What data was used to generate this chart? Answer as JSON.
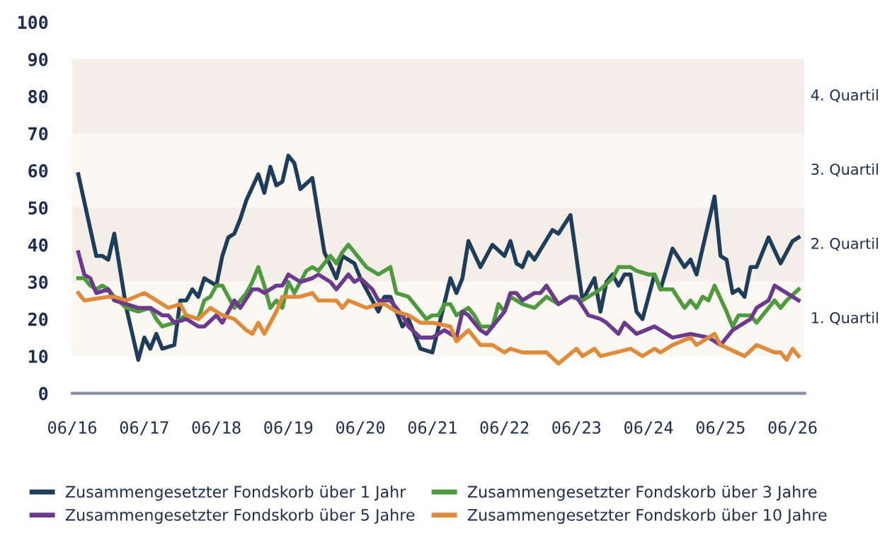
{
  "chart_data": {
    "type": "line",
    "xlim": [
      "2016-06",
      "2026-08"
    ],
    "ylim": [
      0,
      100
    ],
    "xticks": [
      {
        "value": "2016-06",
        "label": "06/16"
      },
      {
        "value": "2017-06",
        "label": "06/17"
      },
      {
        "value": "2018-06",
        "label": "06/18"
      },
      {
        "value": "2019-06",
        "label": "06/19"
      },
      {
        "value": "2020-06",
        "label": "06/20"
      },
      {
        "value": "2021-06",
        "label": "06/21"
      },
      {
        "value": "2022-06",
        "label": "06/22"
      },
      {
        "value": "2023-06",
        "label": "06/23"
      },
      {
        "value": "2024-06",
        "label": "06/24"
      },
      {
        "value": "2025-06",
        "label": "06/25"
      },
      {
        "value": "2026-06",
        "label": "06/26"
      }
    ],
    "yticks": [
      0,
      10,
      20,
      30,
      40,
      50,
      60,
      70,
      80,
      90,
      100
    ],
    "grid": false,
    "legend": "bottom",
    "marker": "none",
    "line_style": "solid",
    "bands": [
      {
        "axis": "y",
        "from": 10,
        "to": 30,
        "label": "1. Quartil",
        "color": "#fbf8f3"
      },
      {
        "axis": "y",
        "from": 30,
        "to": 50,
        "label": "2. Quartil",
        "color": "#f3eee8"
      },
      {
        "axis": "y",
        "from": 50,
        "to": 70,
        "label": "3. Quartil",
        "color": "#fbf8f3"
      },
      {
        "axis": "y",
        "from": 70,
        "to": 90,
        "label": "4. Quartil",
        "color": "#f3eee8"
      }
    ],
    "series": [
      {
        "name": "Zusammengesetzter Fondskorb über 1 Jahr",
        "color": "#1f3d5a",
        "x": [
          "2016-07",
          "2016-10",
          "2016-11",
          "2016-12",
          "2017-01",
          "2017-02",
          "2017-03",
          "2017-05",
          "2017-06",
          "2017-07",
          "2017-08",
          "2017-09",
          "2017-11",
          "2017-12",
          "2018-01",
          "2018-02",
          "2018-03",
          "2018-04",
          "2018-06",
          "2018-07",
          "2018-08",
          "2018-09",
          "2018-10",
          "2018-11",
          "2019-01",
          "2019-02",
          "2019-03",
          "2019-04",
          "2019-05",
          "2019-06",
          "2019-07",
          "2019-08",
          "2019-10",
          "2019-12",
          "2020-02",
          "2020-03",
          "2020-05",
          "2020-06",
          "2020-07",
          "2020-09",
          "2020-10",
          "2020-11",
          "2021-01",
          "2021-02",
          "2021-04",
          "2021-06",
          "2021-09",
          "2021-10",
          "2021-11",
          "2021-12",
          "2022-02",
          "2022-04",
          "2022-06",
          "2022-07",
          "2022-08",
          "2022-09",
          "2022-10",
          "2022-11",
          "2023-02",
          "2023-03",
          "2023-05",
          "2023-07",
          "2023-09",
          "2023-10",
          "2023-11",
          "2023-12",
          "2024-01",
          "2024-02",
          "2024-03",
          "2024-04",
          "2024-05",
          "2024-07",
          "2024-08",
          "2024-10",
          "2024-12",
          "2025-01",
          "2025-02",
          "2025-05",
          "2025-06",
          "2025-07",
          "2025-08",
          "2025-09",
          "2025-10",
          "2025-11",
          "2025-12",
          "2026-02",
          "2026-04",
          "2026-06",
          "2026-07"
        ],
        "values": [
          59,
          37,
          37,
          36,
          43,
          33,
          23,
          9,
          15,
          12,
          16,
          12,
          13,
          25,
          25,
          28,
          26,
          31,
          29,
          37,
          42,
          43,
          47,
          52,
          59,
          54,
          61,
          56,
          57,
          64,
          62,
          55,
          58,
          38,
          31,
          37,
          35,
          31,
          28,
          22,
          26,
          26,
          18,
          20,
          12,
          11,
          31,
          27,
          31,
          41,
          34,
          40,
          37,
          41,
          35,
          34,
          38,
          36,
          44,
          43,
          48,
          25,
          31,
          22,
          30,
          32,
          29,
          32,
          32,
          22,
          20,
          32,
          28,
          39,
          34,
          36,
          32,
          53,
          37,
          36,
          27,
          28,
          26,
          34,
          34,
          42,
          35,
          41,
          42
        ]
      },
      {
        "name": "Zusammengesetzter Fondskorb über 3 Jahre",
        "color": "#4e9a3e",
        "x": [
          "2016-07",
          "2016-08",
          "2016-09",
          "2016-10",
          "2016-11",
          "2016-12",
          "2017-01",
          "2017-03",
          "2017-05",
          "2017-07",
          "2017-08",
          "2017-09",
          "2017-11",
          "2018-01",
          "2018-03",
          "2018-04",
          "2018-05",
          "2018-06",
          "2018-07",
          "2018-09",
          "2018-11",
          "2018-12",
          "2019-01",
          "2019-02",
          "2019-03",
          "2019-04",
          "2019-05",
          "2019-06",
          "2019-07",
          "2019-09",
          "2019-10",
          "2019-11",
          "2020-01",
          "2020-02",
          "2020-03",
          "2020-04",
          "2020-07",
          "2020-09",
          "2020-11",
          "2020-12",
          "2021-02",
          "2021-05",
          "2021-06",
          "2021-07",
          "2021-08",
          "2021-09",
          "2021-10",
          "2021-12",
          "2022-01",
          "2022-02",
          "2022-04",
          "2022-05",
          "2022-06",
          "2022-07",
          "2022-09",
          "2022-11",
          "2023-01",
          "2023-03",
          "2023-05",
          "2023-07",
          "2023-10",
          "2023-12",
          "2024-01",
          "2024-03",
          "2024-04",
          "2024-06",
          "2024-07",
          "2024-08",
          "2024-10",
          "2024-12",
          "2025-01",
          "2025-02",
          "2025-03",
          "2025-04",
          "2025-05",
          "2025-07",
          "2025-08",
          "2025-09",
          "2025-11",
          "2025-12",
          "2026-01",
          "2026-03",
          "2026-04",
          "2026-05",
          "2026-07"
        ],
        "values": [
          31,
          31,
          29,
          28,
          29,
          28,
          26,
          23,
          22,
          23,
          20,
          18,
          19,
          21,
          20,
          25,
          26,
          29,
          29,
          23,
          27,
          30,
          34,
          29,
          23,
          25,
          23,
          30,
          27,
          33,
          34,
          33,
          37,
          35,
          38,
          40,
          34,
          32,
          34,
          27,
          26,
          20,
          21,
          21,
          24,
          24,
          21,
          23,
          21,
          18,
          18,
          24,
          22,
          26,
          24,
          23,
          26,
          24,
          26,
          25,
          28,
          31,
          34,
          34,
          33,
          32,
          32,
          28,
          28,
          23,
          25,
          23,
          26,
          25,
          29,
          22,
          18,
          21,
          21,
          19,
          21,
          25,
          23,
          25,
          28
        ]
      },
      {
        "name": "Zusammengesetzter Fondskorb über 5 Jahre",
        "color": "#6b3a8c",
        "x": [
          "2016-07",
          "2016-08",
          "2016-09",
          "2016-10",
          "2016-12",
          "2017-01",
          "2017-03",
          "2017-05",
          "2017-06",
          "2017-07",
          "2017-09",
          "2017-10",
          "2017-11",
          "2018-01",
          "2018-03",
          "2018-04",
          "2018-06",
          "2018-07",
          "2018-09",
          "2018-10",
          "2018-12",
          "2019-01",
          "2019-02",
          "2019-04",
          "2019-05",
          "2019-06",
          "2019-08",
          "2019-10",
          "2019-11",
          "2019-12",
          "2020-01",
          "2020-02",
          "2020-04",
          "2020-05",
          "2020-06",
          "2020-08",
          "2020-09",
          "2020-11",
          "2021-01",
          "2021-02",
          "2021-04",
          "2021-06",
          "2021-08",
          "2021-10",
          "2021-11",
          "2021-12",
          "2022-02",
          "2022-03",
          "2022-05",
          "2022-06",
          "2022-07",
          "2022-08",
          "2022-09",
          "2022-11",
          "2022-12",
          "2023-01",
          "2023-03",
          "2023-05",
          "2023-06",
          "2023-08",
          "2023-10",
          "2023-11",
          "2024-01",
          "2024-02",
          "2024-04",
          "2024-07",
          "2024-10",
          "2025-01",
          "2025-04",
          "2025-06",
          "2025-08",
          "2025-11",
          "2025-12",
          "2026-02",
          "2026-03",
          "2026-04",
          "2026-07"
        ],
        "values": [
          38,
          32,
          31,
          27,
          28,
          25,
          24,
          23,
          23,
          23,
          21,
          21,
          19,
          20,
          18,
          18,
          21,
          19,
          25,
          23,
          28,
          28,
          27,
          29,
          29,
          32,
          30,
          31,
          32,
          31,
          30,
          28,
          32,
          30,
          31,
          28,
          25,
          25,
          21,
          18,
          15,
          15,
          17,
          15,
          22,
          21,
          17,
          16,
          20,
          22,
          27,
          27,
          25,
          27,
          27,
          29,
          24,
          26,
          26,
          21,
          20,
          19,
          16,
          19,
          16,
          18,
          15,
          16,
          15,
          13,
          17,
          20,
          23,
          25,
          29,
          28,
          25
        ]
      },
      {
        "name": "Zusammengesetzter Fondskorb über 10 Jahre",
        "color": "#e08a3c",
        "x": [
          "2016-07",
          "2016-08",
          "2016-12",
          "2017-01",
          "2017-03",
          "2017-06",
          "2017-09",
          "2017-10",
          "2017-12",
          "2018-01",
          "2018-03",
          "2018-05",
          "2018-06",
          "2018-07",
          "2018-09",
          "2018-11",
          "2018-12",
          "2019-01",
          "2019-02",
          "2019-04",
          "2019-05",
          "2019-08",
          "2019-10",
          "2019-11",
          "2020-02",
          "2020-03",
          "2020-04",
          "2020-07",
          "2020-09",
          "2020-10",
          "2020-12",
          "2021-02",
          "2021-04",
          "2021-06",
          "2021-09",
          "2021-10",
          "2021-12",
          "2022-02",
          "2022-04",
          "2022-06",
          "2022-07",
          "2022-09",
          "2023-01",
          "2023-03",
          "2023-06",
          "2023-07",
          "2023-09",
          "2023-10",
          "2024-03",
          "2024-05",
          "2024-07",
          "2024-08",
          "2024-10",
          "2025-01",
          "2025-02",
          "2025-05",
          "2025-06",
          "2025-10",
          "2025-12",
          "2026-03",
          "2026-04",
          "2026-05",
          "2026-06",
          "2026-07"
        ],
        "values": [
          27,
          25,
          26,
          26,
          25,
          27,
          24,
          23,
          24,
          21,
          20,
          23,
          22,
          21,
          20,
          17,
          16,
          19,
          16,
          22,
          26,
          26,
          27,
          25,
          25,
          23,
          25,
          23,
          24,
          24,
          22,
          21,
          19,
          19,
          18,
          14,
          17,
          13,
          13,
          11,
          12,
          11,
          11,
          8,
          12,
          10,
          12,
          10,
          12,
          10,
          12,
          11,
          13,
          15,
          13,
          16,
          13,
          10,
          13,
          11,
          11,
          9,
          12,
          10
        ]
      }
    ]
  }
}
